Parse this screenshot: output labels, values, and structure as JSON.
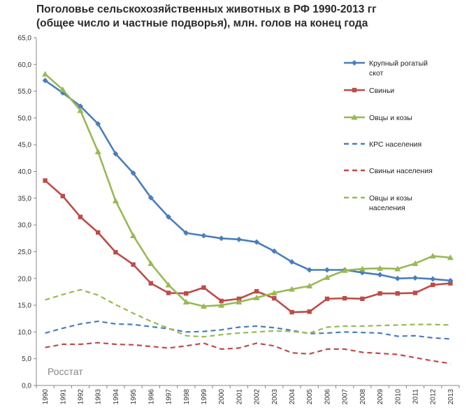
{
  "title_line1": "Поголовье сельскохозяйственных животных в РФ 1990-2013 гг",
  "title_line2": "(общее число и частные подворья), млн. голов на конец года",
  "source_label": "Росстат",
  "chart_data": {
    "type": "line",
    "title": "Поголовье сельскохозяйственных животных в РФ 1990-2013 гг (общее число и частные подворья), млн. голов на конец года",
    "xlabel": "",
    "ylabel": "",
    "ylim": [
      0,
      65
    ],
    "ytick_step": 5,
    "ytick_labels": [
      "0,0",
      "5,0",
      "10,0",
      "15,0",
      "20,0",
      "25,0",
      "30,0",
      "35,0",
      "40,0",
      "45,0",
      "50,0",
      "55,0",
      "60,0",
      "65,0"
    ],
    "grid": false,
    "legend_position": "right",
    "categories": [
      "1990",
      "1991",
      "1992",
      "1993",
      "1994",
      "1995",
      "1996",
      "1997",
      "1998",
      "1999",
      "2000",
      "2001",
      "2002",
      "2003",
      "2004",
      "2005",
      "2006",
      "2007",
      "2008",
      "2009",
      "2010",
      "2011",
      "2012",
      "2013"
    ],
    "series": [
      {
        "name": "Крупный рогатый скот",
        "legend_lines": [
          "Крупный рогатый",
          "скот"
        ],
        "color": "#4a7ebb",
        "dash": "solid",
        "marker": "diamond",
        "values": [
          57.0,
          54.7,
          52.2,
          48.9,
          43.3,
          39.7,
          35.1,
          31.5,
          28.5,
          28.0,
          27.5,
          27.3,
          26.8,
          25.1,
          23.1,
          21.6,
          21.6,
          21.6,
          21.1,
          20.7,
          20.0,
          20.1,
          19.9,
          19.6
        ]
      },
      {
        "name": "Свиньи",
        "legend_lines": [
          "Свиньи"
        ],
        "color": "#be4b48",
        "dash": "solid",
        "marker": "square",
        "values": [
          38.3,
          35.4,
          31.5,
          28.6,
          24.9,
          22.6,
          19.1,
          17.3,
          17.2,
          18.3,
          15.8,
          16.2,
          17.6,
          16.3,
          13.7,
          13.8,
          16.2,
          16.3,
          16.2,
          17.2,
          17.2,
          17.3,
          18.8,
          19.1
        ]
      },
      {
        "name": "Овцы и козы",
        "legend_lines": [
          "Овцы и козы"
        ],
        "color": "#98b954",
        "dash": "solid",
        "marker": "triangle",
        "values": [
          58.2,
          55.3,
          51.4,
          43.7,
          34.5,
          28.0,
          22.8,
          18.8,
          15.6,
          14.8,
          15.0,
          15.6,
          16.4,
          17.3,
          18.0,
          18.6,
          20.2,
          21.5,
          21.8,
          21.9,
          21.8,
          22.8,
          24.2,
          23.9
        ]
      },
      {
        "name": "КРС населения",
        "legend_lines": [
          "КРС населения"
        ],
        "color": "#4a7ebb",
        "dash": "dashed",
        "marker": "none",
        "values": [
          9.8,
          10.7,
          11.5,
          12.0,
          11.5,
          11.4,
          11.0,
          10.6,
          10.0,
          10.1,
          10.4,
          10.9,
          11.1,
          10.8,
          10.3,
          9.7,
          9.8,
          10.0,
          9.9,
          9.8,
          9.2,
          9.3,
          8.9,
          8.7
        ]
      },
      {
        "name": "Свиньи населения",
        "legend_lines": [
          "Свиньи населения"
        ],
        "color": "#be4b48",
        "dash": "dashed",
        "marker": "none",
        "values": [
          7.1,
          7.7,
          7.7,
          8.0,
          7.7,
          7.6,
          7.3,
          7.0,
          7.4,
          7.9,
          6.8,
          7.0,
          7.9,
          7.4,
          6.1,
          5.9,
          6.8,
          6.8,
          6.2,
          6.0,
          5.8,
          5.2,
          4.6,
          4.1
        ]
      },
      {
        "name": "Овцы и козы населения",
        "legend_lines": [
          "Овцы и козы",
          "населения"
        ],
        "color": "#98b954",
        "dash": "dashed",
        "marker": "none",
        "values": [
          16.0,
          17.0,
          17.9,
          16.9,
          15.1,
          13.5,
          12.0,
          10.7,
          9.3,
          9.1,
          9.5,
          9.8,
          10.0,
          10.2,
          10.1,
          9.8,
          10.9,
          11.1,
          11.1,
          11.2,
          11.3,
          11.4,
          11.4,
          11.3
        ]
      }
    ]
  }
}
